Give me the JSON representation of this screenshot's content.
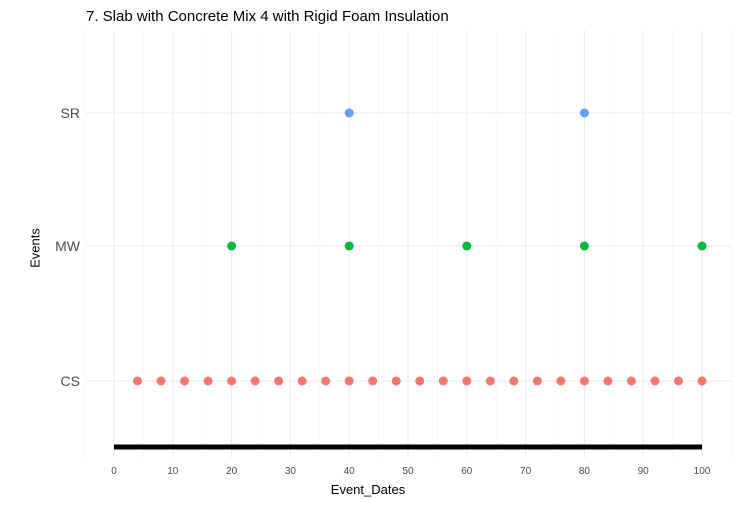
{
  "chart_data": {
    "type": "scatter",
    "title": "7. Slab with Concrete Mix 4 with Rigid Foam Insulation",
    "xlabel": "Event_Dates",
    "ylabel": "Events",
    "xlim": [
      0,
      100
    ],
    "x_ticks": [
      0,
      10,
      20,
      30,
      40,
      50,
      60,
      70,
      80,
      90,
      100
    ],
    "categories": [
      "CS",
      "MW",
      "SR"
    ],
    "grid": true,
    "legend": "none",
    "series": [
      {
        "name": "CS",
        "color": "#F8766D",
        "x": [
          4,
          8,
          12,
          16,
          20,
          24,
          28,
          32,
          36,
          40,
          44,
          48,
          52,
          56,
          60,
          64,
          68,
          72,
          76,
          80,
          84,
          88,
          92,
          96,
          100
        ]
      },
      {
        "name": "MW",
        "color": "#00BA38",
        "x": [
          20,
          40,
          60,
          80,
          100
        ]
      },
      {
        "name": "SR",
        "color": "#619CFF",
        "x": [
          40,
          80
        ]
      }
    ],
    "baseline_segment": {
      "x": [
        0,
        100
      ],
      "color": "#000000"
    }
  }
}
